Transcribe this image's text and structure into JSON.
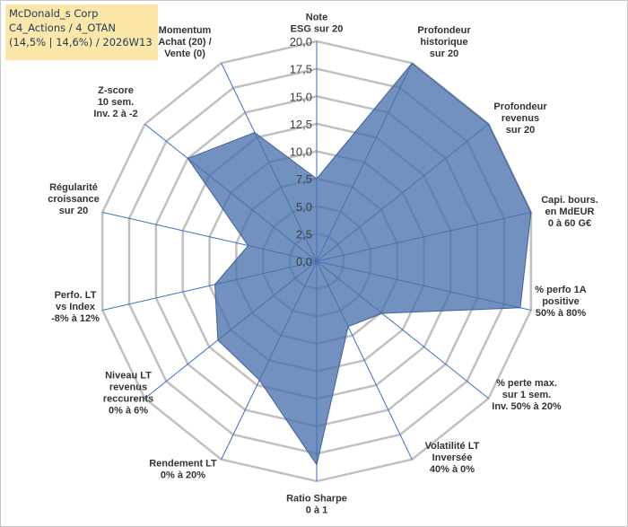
{
  "header": {
    "line1": "McDonald_s Corp",
    "line2": "C4_Actions / 4_OTAN",
    "line3": "(14,5% | 14,6%) / 2026W13"
  },
  "colors": {
    "grid": "#c0c0c0",
    "spoke": "#3a6fc0",
    "fill": "#4a72ad",
    "fill_opacity": "0.78",
    "stroke": "#3d6396",
    "title_bg": "#fce7a8"
  },
  "chart_data": {
    "type": "radar",
    "title": "",
    "rmin": 0,
    "rmax": 20,
    "tick_step": 2.5,
    "tick_labels": [
      "0,0",
      "2,5",
      "5,0",
      "7,5",
      "10,0",
      "12,5",
      "15,0",
      "17,5",
      "20,0"
    ],
    "axes": [
      {
        "label": [
          "Note",
          "ESG sur 20"
        ],
        "value": 7.5
      },
      {
        "label": [
          "Profondeur",
          "historique",
          "sur 20"
        ],
        "value": 20
      },
      {
        "label": [
          "Profondeur",
          "revenus",
          "sur 20"
        ],
        "value": 20
      },
      {
        "label": [
          "Capi. bours.",
          "en MdEUR",
          "0 à 60 G€"
        ],
        "value": 20
      },
      {
        "label": [
          "% perfo 1A",
          "positive",
          "50% à 80%"
        ],
        "value": 19
      },
      {
        "label": [
          "% perte max.",
          "sur 1 sem.",
          "Inv. 50% à 20%"
        ],
        "value": 7.6
      },
      {
        "label": [
          "Volatilité LT",
          "Inversée",
          "40% à 0%"
        ],
        "value": 6.6
      },
      {
        "label": [
          "Ratio Sharpe",
          "0 à 1"
        ],
        "value": 18.5
      },
      {
        "label": [
          "Rendement LT",
          "0% à 20%"
        ],
        "value": 12
      },
      {
        "label": [
          "Niveau LT",
          "revenus",
          "reccurents",
          "0% à 6%"
        ],
        "value": 11.5
      },
      {
        "label": [
          "Perfo. LT",
          "vs Index",
          "-8% à 12%"
        ],
        "value": 9.5
      },
      {
        "label": [
          "Régularité",
          "croissance",
          "sur 20"
        ],
        "value": 6.4
      },
      {
        "label": [
          "Z-score",
          "10 sem.",
          "Inv. 2 à -2"
        ],
        "value": 15
      },
      {
        "label": [
          "Momentum",
          "Achat (20) /",
          "Vente (0)"
        ],
        "value": 13
      }
    ]
  }
}
